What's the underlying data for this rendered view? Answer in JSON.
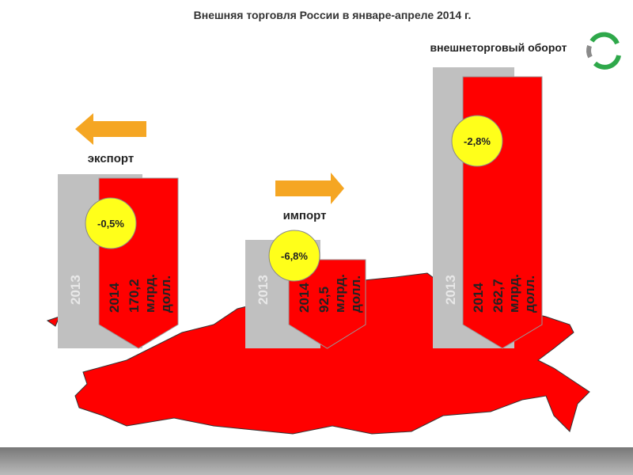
{
  "title": "Внешняя торговля России в январе-апреле 2014 г.",
  "legend": "внешнеторговый оборот",
  "groups": [
    {
      "label": "экспорт",
      "year_prev": "2013",
      "year": "2014",
      "value": "170,2",
      "unit": [
        "млрд.",
        "долл."
      ],
      "change": "-0,5%"
    },
    {
      "label": "импорт",
      "year_prev": "2013",
      "year": "2014",
      "value": "92,5",
      "unit": [
        "млрд.",
        "долл."
      ],
      "change": "-6,8%"
    },
    {
      "year_prev": "2013",
      "year": "2014",
      "value": "262,7",
      "unit": [
        "млрд.",
        "долл."
      ],
      "change": "-2,8%"
    }
  ]
}
